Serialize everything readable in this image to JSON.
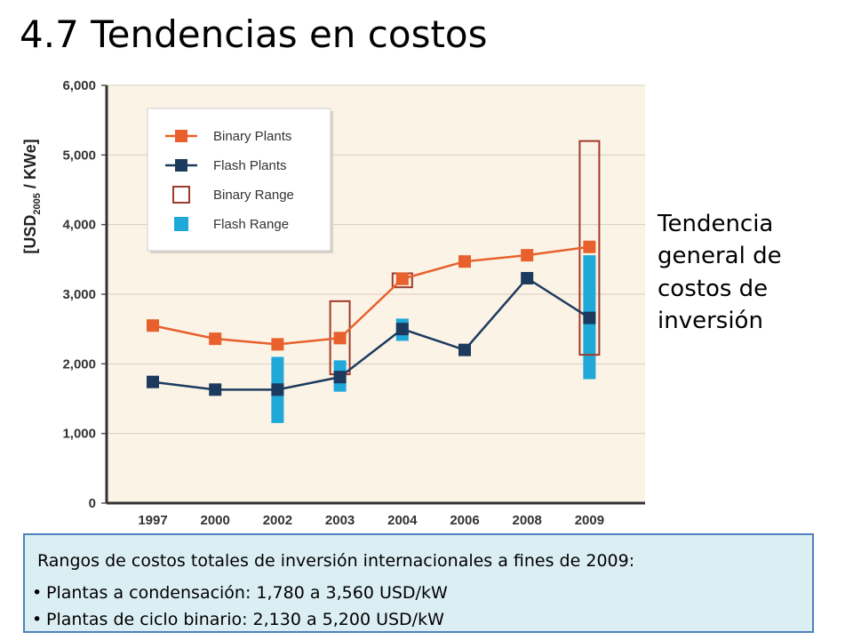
{
  "slide": {
    "title": "4.7 Tendencias en costos",
    "side_text": [
      "Tendencia",
      "general de",
      "costos de",
      "inversión"
    ]
  },
  "info_box": {
    "heading": "Rangos de costos totales de inversión internacionales a fines de 2009:",
    "bullets": [
      "Plantas a condensación: 1,780 a 3,560 USD/kW",
      "Plantas de ciclo binario: 2,130 a 5,200 USD/kW"
    ]
  },
  "chart_data": {
    "type": "line",
    "ylabel": "[USD2005 / KWe]",
    "ylim": [
      0,
      6000
    ],
    "yticks": [
      0,
      1000,
      2000,
      3000,
      4000,
      5000,
      6000
    ],
    "ytick_labels": [
      "0",
      "1,000",
      "2,000",
      "3,000",
      "4,000",
      "5,000",
      "6,000"
    ],
    "categories": [
      "1997",
      "2000",
      "2002",
      "2003",
      "2004",
      "2006",
      "2008",
      "2009"
    ],
    "series": [
      {
        "name": "Binary Plants",
        "color": "#e8602c",
        "values": [
          2550,
          2360,
          2280,
          2370,
          3220,
          3470,
          3560,
          3680
        ]
      },
      {
        "name": "Flash Plants",
        "color": "#1c3a5e",
        "values": [
          1740,
          1630,
          1630,
          1810,
          2500,
          2200,
          3230,
          2660
        ]
      }
    ],
    "ranges": [
      {
        "name": "Binary Range",
        "color": "#a03a2a",
        "items": [
          {
            "category": "2003",
            "low": 1850,
            "high": 2900
          },
          {
            "category": "2004",
            "low": 3100,
            "high": 3300
          },
          {
            "category": "2009",
            "low": 2130,
            "high": 5200
          }
        ]
      },
      {
        "name": "Flash Range",
        "color": "#1fa8d8",
        "items": [
          {
            "category": "2002",
            "low": 1150,
            "high": 2100
          },
          {
            "category": "2003",
            "low": 1600,
            "high": 2050
          },
          {
            "category": "2004",
            "low": 2330,
            "high": 2650
          },
          {
            "category": "2009",
            "low": 1780,
            "high": 3560
          }
        ]
      }
    ],
    "legend": {
      "position": "top-left",
      "entries": [
        "Binary Plants",
        "Flash Plants",
        "Binary Range",
        "Flash Range"
      ]
    },
    "background_color": "#fbf3e6",
    "grid": true
  }
}
